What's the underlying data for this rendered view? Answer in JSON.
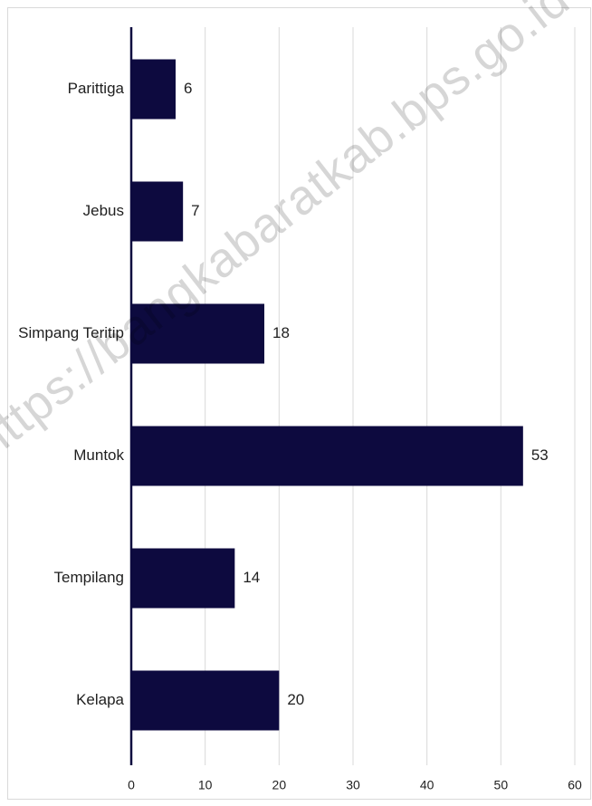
{
  "chart_data": {
    "type": "bar",
    "orientation": "horizontal",
    "categories": [
      "Parittiga",
      "Jebus",
      "Simpang Teritip",
      "Muntok",
      "Tempilang",
      "Kelapa"
    ],
    "values": [
      6,
      7,
      18,
      53,
      14,
      20
    ],
    "xlim": [
      0,
      60
    ],
    "xticks": [
      0,
      10,
      20,
      30,
      40,
      50,
      60
    ],
    "grid": true,
    "legend": "none",
    "bar_color": "#0d0a3f",
    "gridline_color": "#d9d9d9"
  },
  "watermark": "https://bangkabaratkab.bps.go.id"
}
